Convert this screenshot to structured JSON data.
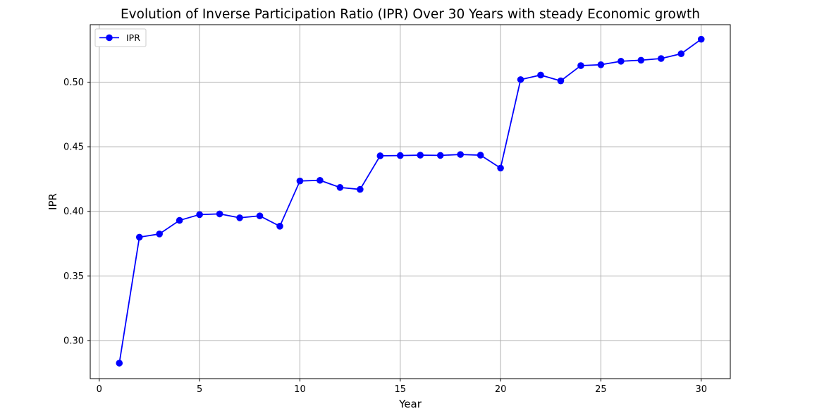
{
  "chart_data": {
    "type": "line",
    "title": "Evolution of Inverse Participation Ratio (IPR) Over 30 Years with steady Economic growth",
    "xlabel": "Year",
    "ylabel": "IPR",
    "xlim": [
      -0.45,
      31.45
    ],
    "ylim": [
      0.2705,
      0.5445
    ],
    "xticks": [
      0,
      5,
      10,
      15,
      20,
      25,
      30
    ],
    "xtick_labels": [
      "0",
      "5",
      "10",
      "15",
      "20",
      "25",
      "30"
    ],
    "yticks": [
      0.3,
      0.35,
      0.4,
      0.45,
      0.5
    ],
    "ytick_labels": [
      "0.30",
      "0.35",
      "0.40",
      "0.45",
      "0.50"
    ],
    "grid": true,
    "legend_position": "top-left",
    "x": [
      1,
      2,
      3,
      4,
      5,
      6,
      7,
      8,
      9,
      10,
      11,
      12,
      13,
      14,
      15,
      16,
      17,
      18,
      19,
      20,
      21,
      22,
      23,
      24,
      25,
      26,
      27,
      28,
      29,
      30
    ],
    "series": [
      {
        "name": "IPR",
        "color": "#0000ff",
        "marker": "circle",
        "values": [
          0.2825,
          0.38,
          0.3825,
          0.393,
          0.3975,
          0.398,
          0.395,
          0.3965,
          0.3885,
          0.4235,
          0.424,
          0.4185,
          0.417,
          0.443,
          0.4432,
          0.4435,
          0.4433,
          0.444,
          0.4435,
          0.4335,
          0.502,
          0.5055,
          0.501,
          0.5128,
          0.5135,
          0.5162,
          0.517,
          0.5183,
          0.522,
          0.5332
        ]
      }
    ],
    "colors": {
      "grid": "#b0b0b0",
      "axes": "#000000",
      "legend_border": "#cccccc"
    }
  }
}
